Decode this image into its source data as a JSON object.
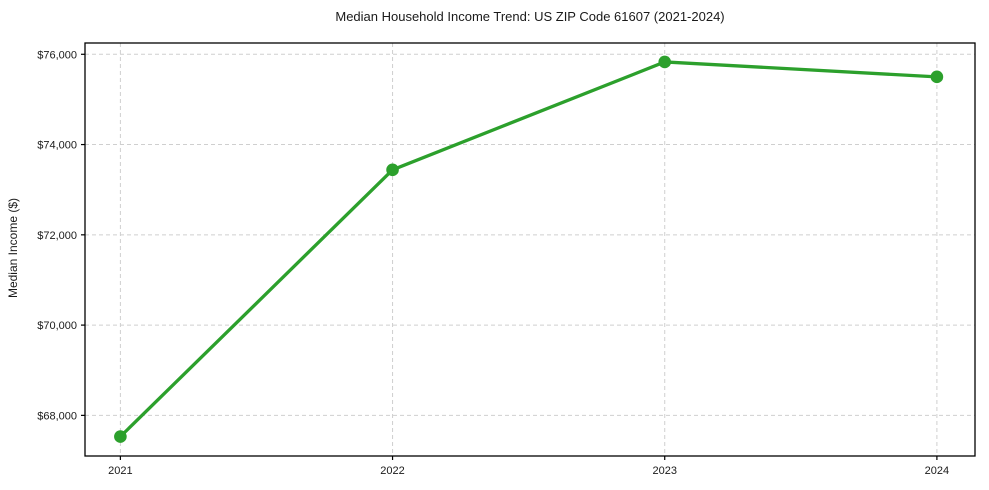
{
  "chart_data": {
    "type": "line",
    "title": "Median Household Income Trend: US ZIP Code 61607 (2021-2024)",
    "xlabel": "",
    "ylabel": "Median Income ($)",
    "x": [
      2021,
      2022,
      2023,
      2024
    ],
    "x_tick_labels": [
      "2021",
      "2022",
      "2023",
      "2024"
    ],
    "y_ticks": [
      68000,
      70000,
      72000,
      74000,
      76000
    ],
    "y_tick_labels": [
      "$68,000",
      "$70,000",
      "$72,000",
      "$74,000",
      "$76,000"
    ],
    "series": [
      {
        "name": "Median Household Income",
        "values": [
          67530,
          73440,
          75830,
          75500
        ],
        "color": "#2ca02c",
        "marker": "circle"
      }
    ],
    "xlim": [
      2020.87,
      2024.14
    ],
    "ylim": [
      67100,
      76250
    ],
    "grid": true,
    "legend": "none",
    "grid_color": "#cfcfcf",
    "axis_color": "#000000",
    "background_color": "#ffffff"
  }
}
